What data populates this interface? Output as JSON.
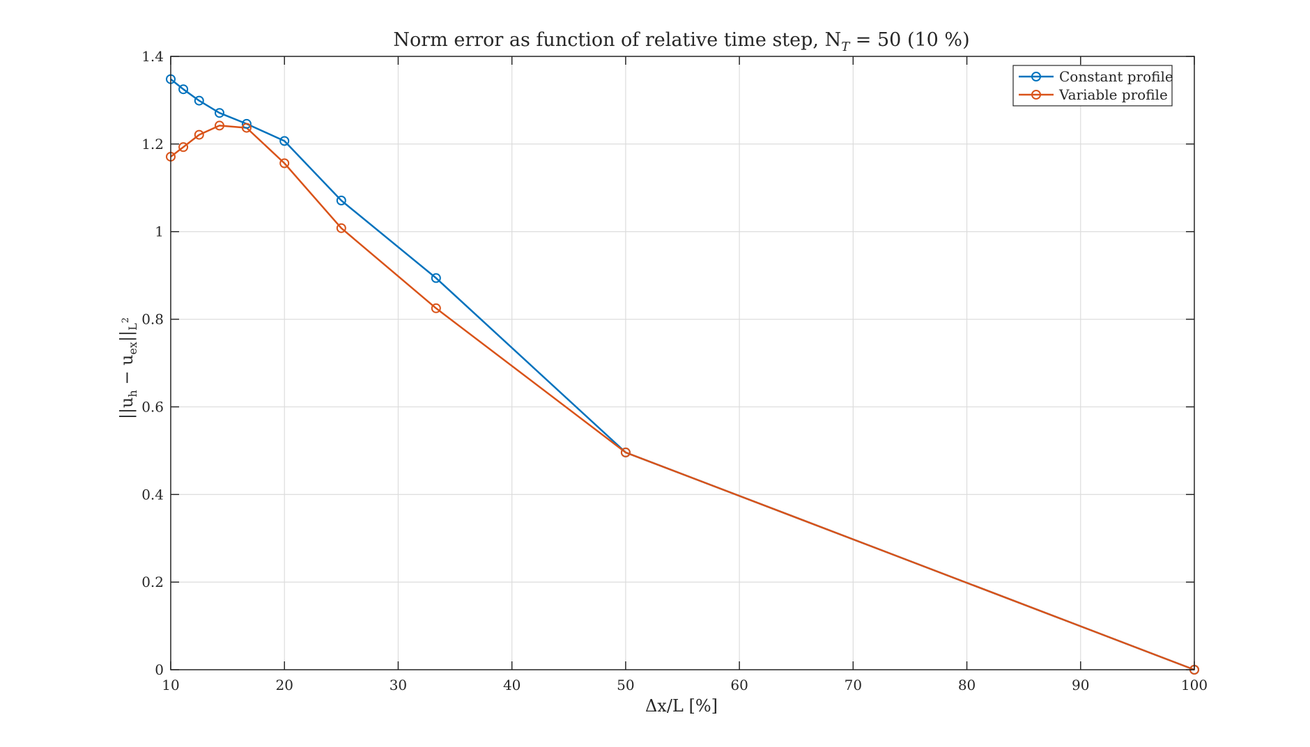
{
  "chart_data": {
    "type": "line",
    "title": "Norm error as function of relative time step, N",
    "title_sub": "T",
    "title_tail": " = 50 (10 %)",
    "xlabel": "Δx/L [%]",
    "ylabel": "||u",
    "ylabel_sub1": "h",
    "ylabel_mid": " − u",
    "ylabel_sub2": "ex",
    "ylabel_tail": "||",
    "ylabel_sub3": "L",
    "ylabel_sup": "2",
    "xlim": [
      10,
      100
    ],
    "ylim": [
      0,
      1.4
    ],
    "xticks": [
      10,
      20,
      30,
      40,
      50,
      60,
      70,
      80,
      90,
      100
    ],
    "yticks": [
      0,
      0.2,
      0.4,
      0.6,
      0.8,
      1,
      1.2,
      1.4
    ],
    "xtick_labels": [
      "10",
      "20",
      "30",
      "40",
      "50",
      "60",
      "70",
      "80",
      "90",
      "100"
    ],
    "ytick_labels": [
      "0",
      "0.2",
      "0.4",
      "0.6",
      "0.8",
      "1",
      "1.2",
      "1.4"
    ],
    "grid": true,
    "legend_position": "top-right",
    "series": [
      {
        "name": "Constant profile",
        "color": "#0072BD",
        "marker": "circle",
        "x": [
          10,
          11.11,
          12.5,
          14.29,
          16.67,
          20,
          25,
          33.33,
          50,
          100
        ],
        "y": [
          1.348,
          1.325,
          1.299,
          1.271,
          1.246,
          1.207,
          1.071,
          0.894,
          0.496,
          0.0
        ]
      },
      {
        "name": "Variable profile",
        "color": "#D95319",
        "marker": "circle",
        "x": [
          10,
          11.11,
          12.5,
          14.29,
          16.67,
          20,
          25,
          33.33,
          50,
          100
        ],
        "y": [
          1.171,
          1.193,
          1.221,
          1.242,
          1.237,
          1.156,
          1.008,
          0.825,
          0.496,
          0.0
        ]
      }
    ]
  }
}
